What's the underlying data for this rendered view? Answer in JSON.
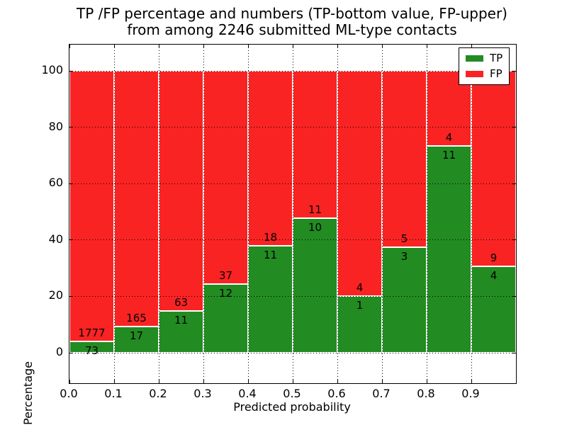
{
  "chart_data": {
    "type": "bar",
    "stacked_percentage": true,
    "title_line1": "TP /FP percentage and numbers (TP-bottom value, FP-upper)",
    "title_line2": "from among 2246 submitted ML-type contacts",
    "total_contacts": 2246,
    "xlabel": "Predicted probability",
    "ylabel": "Percentage",
    "x_tick_labels": [
      "0.0",
      "0.1",
      "0.2",
      "0.3",
      "0.4",
      "0.5",
      "0.6",
      "0.7",
      "0.8",
      "0.9"
    ],
    "x_tick_values": [
      0.0,
      0.1,
      0.2,
      0.3,
      0.4,
      0.5,
      0.6,
      0.7,
      0.8,
      0.9
    ],
    "xlim": [
      0.0,
      1.0
    ],
    "y_tick_values": [
      0,
      20,
      40,
      60,
      80,
      100
    ],
    "ylim": [
      -11,
      110
    ],
    "grid": "dotted black, horizontal and vertical, drawn above bars",
    "bin_width": 0.1,
    "bins": [
      {
        "x_start": 0.0,
        "tp": 73,
        "fp": 1777
      },
      {
        "x_start": 0.1,
        "tp": 17,
        "fp": 165
      },
      {
        "x_start": 0.2,
        "tp": 11,
        "fp": 63
      },
      {
        "x_start": 0.3,
        "tp": 12,
        "fp": 37
      },
      {
        "x_start": 0.4,
        "tp": 11,
        "fp": 18
      },
      {
        "x_start": 0.5,
        "tp": 10,
        "fp": 11
      },
      {
        "x_start": 0.6,
        "tp": 1,
        "fp": 4
      },
      {
        "x_start": 0.7,
        "tp": 3,
        "fp": 5
      },
      {
        "x_start": 0.8,
        "tp": 11,
        "fp": 4
      },
      {
        "x_start": 0.9,
        "tp": 4,
        "fp": 9
      }
    ],
    "series": [
      {
        "name": "TP",
        "position": "bottom",
        "color": "#228b22",
        "values": [
          73,
          17,
          11,
          12,
          11,
          10,
          1,
          3,
          11,
          4
        ]
      },
      {
        "name": "FP",
        "position": "top",
        "color": "#fa2323",
        "values": [
          1777,
          165,
          63,
          37,
          18,
          11,
          4,
          5,
          4,
          9
        ]
      }
    ],
    "legend": {
      "position": "upper right",
      "entries": [
        {
          "label": "TP",
          "color": "#228b22"
        },
        {
          "label": "FP",
          "color": "#fa2323"
        }
      ]
    },
    "colors": {
      "tp": "#228b22",
      "fp": "#fa2323",
      "bar_edge": "#ffffff",
      "grid": "#000000",
      "text": "#000000",
      "background": "#ffffff"
    }
  }
}
